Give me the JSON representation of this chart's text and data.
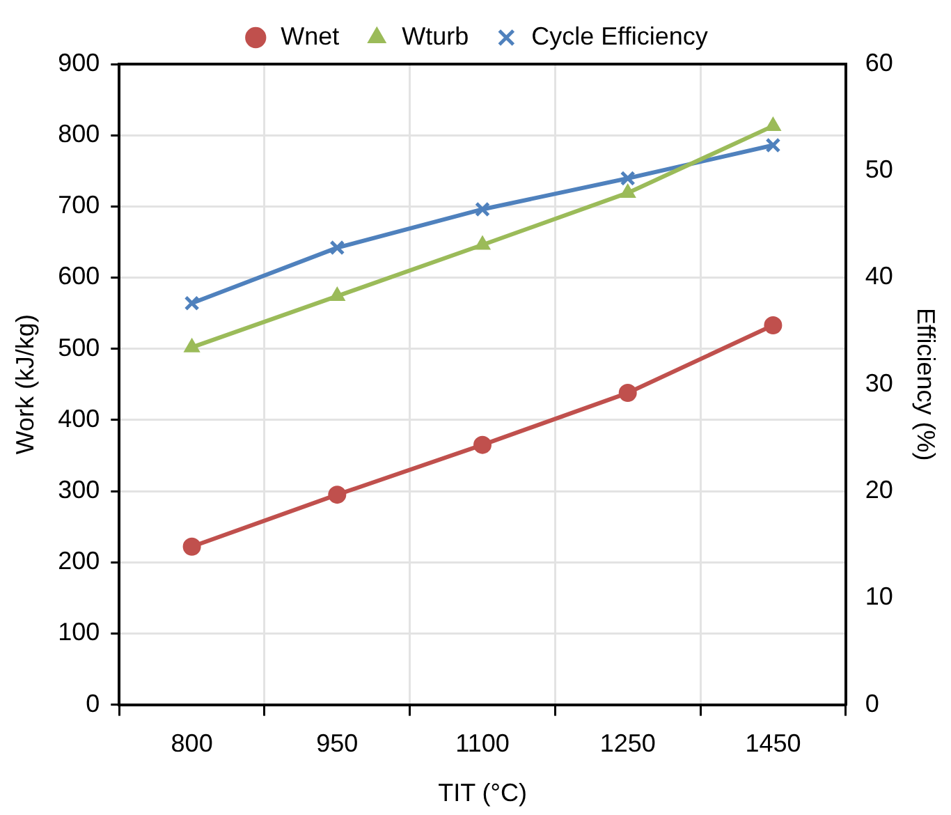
{
  "chart_data": {
    "type": "line",
    "xlabel": "TIT (°C)",
    "ylabel": "Work (kJ/kg)",
    "y2label": "Efficiency (%)",
    "categories": [
      "800",
      "950",
      "1100",
      "1250",
      "1450"
    ],
    "series": [
      {
        "name": "Wnet",
        "color": "#c0504d",
        "marker": "circle",
        "values": [
          222,
          295,
          365,
          438,
          533
        ]
      },
      {
        "name": "Wturb",
        "color": "#9bbb59",
        "marker": "triangle",
        "values": [
          502,
          574,
          646,
          719,
          813
        ]
      },
      {
        "name": "Cycle Efficiency",
        "color": "#4f81bd",
        "marker": "cross",
        "axis": "y2",
        "values": [
          37.6,
          42.8,
          46.4,
          49.3,
          52.4
        ]
      }
    ],
    "ylim": [
      0,
      900
    ],
    "yticks": [
      0,
      100,
      200,
      300,
      400,
      500,
      600,
      700,
      800,
      900
    ],
    "y2lim": [
      0,
      60
    ],
    "y2ticks": [
      0,
      10,
      20,
      30,
      40,
      50,
      60
    ],
    "grid": true,
    "legend": "top",
    "line_style": "solid"
  }
}
